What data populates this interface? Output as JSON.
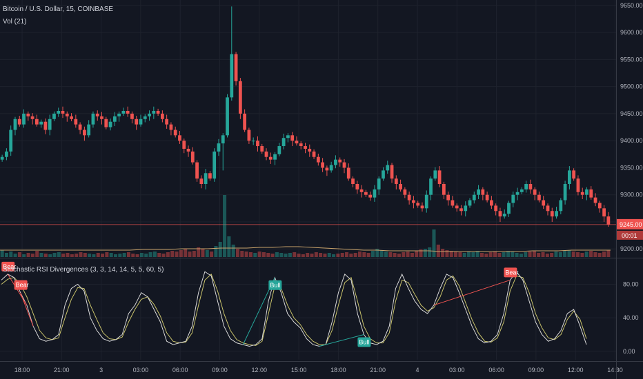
{
  "header": {
    "symbol_line": "Bitcoin / U.S. Dollar, 15, COINBASE",
    "volume_label": "Vol (21)"
  },
  "indicator": {
    "title": "Stochastic RSI Divergences (3, 3, 14, 14, 5, 5, 60, 5)"
  },
  "price_axis": {
    "labels": [
      "9650.00",
      "9600.00",
      "9550.00",
      "9500.00",
      "9450.00",
      "9400.00",
      "9350.00",
      "9300.00",
      "9250.00",
      "9200.00"
    ],
    "last_price": "9245.00",
    "countdown": "00:01"
  },
  "indicator_axis": {
    "labels": [
      "80.00",
      "40.00",
      "0.00"
    ]
  },
  "time_axis": {
    "labels": [
      "18:00",
      "21:00",
      "3",
      "03:00",
      "06:00",
      "09:00",
      "12:00",
      "15:00",
      "18:00",
      "21:00",
      "4",
      "03:00",
      "06:00",
      "09:00",
      "12:00",
      "14:30"
    ]
  },
  "signals": {
    "bear_label": "Bear",
    "bull_label": "Bull"
  },
  "colors": {
    "background": "#131722",
    "bull": "#26a69a",
    "bear": "#ef5350",
    "stoch_k": "#d9d9d9",
    "stoch_d": "#c9c36b",
    "bull_signal": "#26a69a",
    "bear_signal": "#ef5350"
  },
  "chart_data": {
    "type": "candlestick",
    "title": "Bitcoin / U.S. Dollar, 15, COINBASE",
    "price_range": [
      9185,
      9660
    ],
    "price_path": [
      9370,
      9380,
      9420,
      9440,
      9430,
      9450,
      9445,
      9440,
      9430,
      9435,
      9420,
      9440,
      9450,
      9455,
      9450,
      9445,
      9440,
      9430,
      9420,
      9410,
      9430,
      9450,
      9445,
      9440,
      9425,
      9435,
      9445,
      9450,
      9455,
      9450,
      9440,
      9430,
      9440,
      9445,
      9450,
      9455,
      9450,
      9440,
      9430,
      9420,
      9410,
      9400,
      9385,
      9380,
      9360,
      9330,
      9320,
      9340,
      9330,
      9380,
      9395,
      9410,
      9480,
      9560,
      9510,
      9450,
      9420,
      9400,
      9400,
      9390,
      9380,
      9370,
      9365,
      9375,
      9390,
      9405,
      9410,
      9400,
      9395,
      9390,
      9385,
      9380,
      9370,
      9360,
      9350,
      9345,
      9355,
      9365,
      9360,
      9350,
      9330,
      9320,
      9310,
      9305,
      9300,
      9295,
      9310,
      9330,
      9345,
      9355,
      9330,
      9320,
      9310,
      9300,
      9290,
      9285,
      9280,
      9275,
      9300,
      9330,
      9345,
      9320,
      9300,
      9290,
      9280,
      9275,
      9270,
      9280,
      9290,
      9300,
      9310,
      9300,
      9290,
      9280,
      9270,
      9260,
      9265,
      9285,
      9300,
      9305,
      9310,
      9320,
      9310,
      9300,
      9290,
      9280,
      9270,
      9260,
      9270,
      9290,
      9320,
      9345,
      9330,
      9305,
      9300,
      9310,
      9295,
      9285,
      9275,
      9260,
      9245
    ],
    "volume_path": [
      10,
      6,
      8,
      5,
      7,
      4,
      6,
      5,
      9,
      6,
      5,
      4,
      6,
      7,
      5,
      6,
      4,
      5,
      7,
      6,
      5,
      4,
      6,
      5,
      7,
      6,
      4,
      5,
      6,
      7,
      5,
      4,
      6,
      5,
      7,
      8,
      6,
      5,
      7,
      9,
      8,
      10,
      12,
      8,
      9,
      14,
      12,
      10,
      8,
      16,
      22,
      90,
      30,
      18,
      12,
      9,
      8,
      7,
      6,
      8,
      7,
      6,
      5,
      7,
      6,
      5,
      6,
      7,
      5,
      4,
      6,
      5,
      7,
      6,
      5,
      6,
      4,
      5,
      6,
      7,
      5,
      6,
      8,
      7,
      6,
      9,
      12,
      10,
      8,
      7,
      6,
      5,
      7,
      8,
      6,
      9,
      11,
      12,
      14,
      40,
      18,
      12,
      10,
      9,
      8,
      7,
      6,
      8,
      7,
      9,
      6,
      5,
      7,
      8,
      6,
      7,
      9,
      8,
      6,
      5,
      7,
      8,
      9,
      6,
      7,
      5,
      6,
      8,
      7,
      9,
      10,
      8,
      7,
      6,
      8,
      9,
      7,
      6,
      8,
      10
    ],
    "volume_ma_path": [
      10,
      10,
      10,
      10,
      10,
      10,
      10,
      10,
      10,
      10,
      10,
      11,
      11,
      11,
      12,
      12,
      12,
      13,
      13,
      13,
      14,
      14,
      15,
      15,
      14,
      13,
      12,
      11,
      10,
      10,
      9,
      9,
      9,
      9,
      8,
      8,
      8,
      8,
      8,
      8,
      8,
      9,
      9,
      9,
      10,
      10,
      10,
      10
    ],
    "stoch_k": [
      85,
      92,
      88,
      70,
      55,
      30,
      15,
      12,
      14,
      20,
      55,
      75,
      80,
      72,
      40,
      25,
      15,
      12,
      14,
      20,
      45,
      55,
      70,
      65,
      50,
      35,
      12,
      8,
      10,
      12,
      30,
      70,
      95,
      90,
      60,
      30,
      15,
      10,
      8,
      6,
      8,
      15,
      60,
      88,
      70,
      45,
      35,
      28,
      15,
      8,
      6,
      8,
      35,
      70,
      92,
      85,
      45,
      20,
      10,
      8,
      12,
      30,
      75,
      92,
      75,
      60,
      50,
      45,
      55,
      75,
      92,
      88,
      70,
      50,
      30,
      15,
      10,
      12,
      20,
      45,
      85,
      95,
      85,
      60,
      35,
      20,
      12,
      15,
      25,
      45,
      50,
      30,
      8
    ],
    "stoch_d": [
      80,
      86,
      88,
      80,
      65,
      45,
      25,
      16,
      14,
      16,
      40,
      62,
      76,
      75,
      55,
      38,
      22,
      15,
      14,
      17,
      35,
      50,
      62,
      65,
      56,
      42,
      22,
      12,
      10,
      11,
      22,
      55,
      85,
      92,
      72,
      45,
      25,
      14,
      10,
      8,
      7,
      12,
      45,
      78,
      75,
      55,
      40,
      32,
      20,
      12,
      8,
      8,
      25,
      55,
      82,
      88,
      60,
      30,
      15,
      10,
      10,
      22,
      60,
      85,
      82,
      68,
      55,
      48,
      52,
      65,
      85,
      90,
      78,
      58,
      38,
      22,
      12,
      11,
      16,
      35,
      72,
      90,
      88,
      70,
      45,
      28,
      16,
      14,
      20,
      38,
      48,
      38,
      15
    ],
    "stoch_range": [
      -10,
      110
    ],
    "divergences": [
      {
        "type": "bear",
        "label": "Bear"
      },
      {
        "type": "bear",
        "label": "Bear"
      },
      {
        "type": "bull",
        "label": "Bull"
      },
      {
        "type": "bull",
        "label": "Bull"
      },
      {
        "type": "bear",
        "label": "Bear"
      }
    ]
  }
}
